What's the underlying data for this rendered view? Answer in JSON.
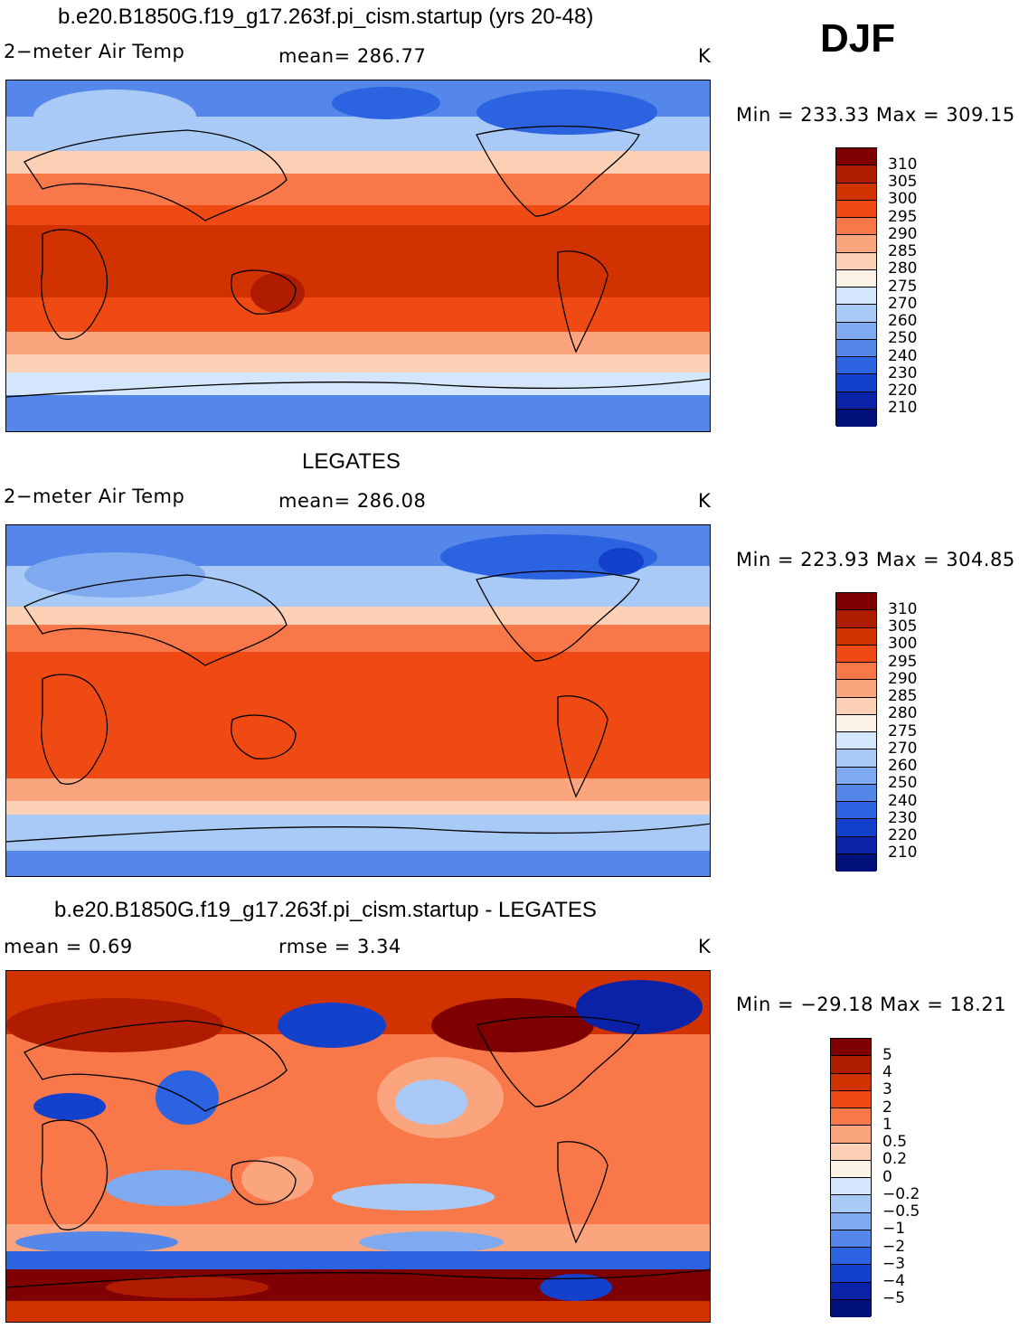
{
  "season": "DJF",
  "panels": [
    {
      "title": "b.e20.B1850G.f19_g17.263f.pi_cism.startup (yrs 20-48)",
      "variable": "2−meter Air Temp",
      "stat": "mean=  286.77",
      "units": "K",
      "minmax": "Min = 233.33 Max = 309.15",
      "colorbar": {
        "colors": [
          "#7f0000",
          "#b01c00",
          "#d13300",
          "#f04a14",
          "#f8784a",
          "#fba57f",
          "#fcd0b4",
          "#fdf2e6",
          "#d4e6fb",
          "#a9c9f6",
          "#7faaf0",
          "#5587ea",
          "#2c63e0",
          "#1441cc",
          "#0a22a8",
          "#00107a"
        ],
        "labels": [
          "310",
          "305",
          "300",
          "295",
          "290",
          "285",
          "280",
          "275",
          "270",
          "260",
          "250",
          "240",
          "230",
          "220",
          "210"
        ]
      }
    },
    {
      "title": "LEGATES",
      "variable": "2−meter Air Temp",
      "stat": "mean=  286.08",
      "units": "K",
      "minmax": "Min = 223.93 Max = 304.85",
      "colorbar": {
        "colors": [
          "#7f0000",
          "#b01c00",
          "#d13300",
          "#f04a14",
          "#f8784a",
          "#fba57f",
          "#fcd0b4",
          "#fdf2e6",
          "#d4e6fb",
          "#a9c9f6",
          "#7faaf0",
          "#5587ea",
          "#2c63e0",
          "#1441cc",
          "#0a22a8",
          "#00107a"
        ],
        "labels": [
          "310",
          "305",
          "300",
          "295",
          "290",
          "285",
          "280",
          "275",
          "270",
          "260",
          "250",
          "240",
          "230",
          "220",
          "210"
        ]
      }
    },
    {
      "title": "b.e20.B1850G.f19_g17.263f.pi_cism.startup - LEGATES",
      "variable": "mean =     0.69",
      "stat": "rmse =     3.34",
      "units": "K",
      "minmax": "Min = −29.18 Max =   18.21",
      "colorbar": {
        "colors": [
          "#7f0000",
          "#b01c00",
          "#d13300",
          "#f04a14",
          "#f8784a",
          "#fba57f",
          "#fcd0b4",
          "#fdf2e6",
          "#d4e6fb",
          "#a9c9f6",
          "#7faaf0",
          "#5587ea",
          "#2c63e0",
          "#1441cc",
          "#0a22a8",
          "#00107a"
        ],
        "labels": [
          "5",
          "4",
          "3",
          "2",
          "1",
          "0.5",
          "0.2",
          "0",
          "−0.2",
          "−0.5",
          "−1",
          "−2",
          "−3",
          "−4",
          "−5"
        ]
      }
    }
  ]
}
